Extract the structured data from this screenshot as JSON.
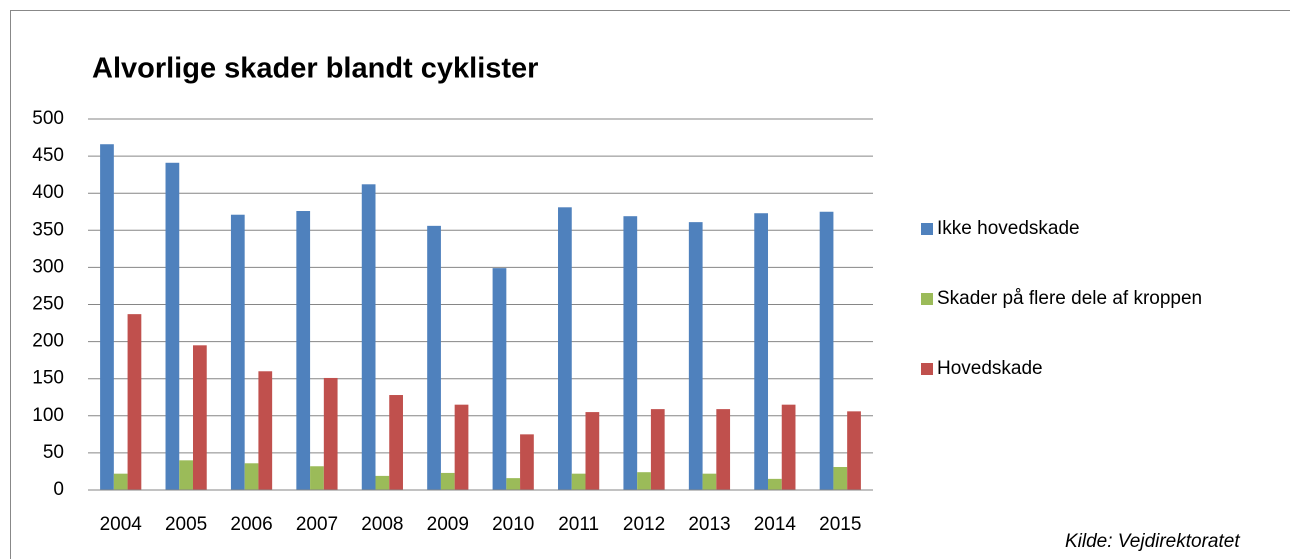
{
  "chart_data": {
    "type": "bar",
    "title": "Alvorlige skader blandt cyklister",
    "categories": [
      "2004",
      "2005",
      "2006",
      "2007",
      "2008",
      "2009",
      "2010",
      "2011",
      "2012",
      "2013",
      "2014",
      "2015"
    ],
    "series": [
      {
        "name": "Ikke hovedskade",
        "color": "#4f81bd",
        "values": [
          466,
          441,
          371,
          376,
          412,
          356,
          299,
          381,
          369,
          361,
          373,
          375
        ]
      },
      {
        "name": "Skader på flere dele af kroppen",
        "color": "#9bbb59",
        "values": [
          22,
          40,
          36,
          32,
          19,
          23,
          16,
          22,
          24,
          22,
          15,
          31
        ]
      },
      {
        "name": "Hovedskade",
        "color": "#c0504d",
        "values": [
          237,
          195,
          160,
          151,
          128,
          115,
          75,
          105,
          109,
          109,
          115,
          106
        ]
      }
    ],
    "ylim": [
      0,
      500
    ],
    "yticks": [
      0,
      50,
      100,
      150,
      200,
      250,
      300,
      350,
      400,
      450,
      500
    ],
    "grid": true,
    "legend": "right",
    "source": "Kilde: Vejdirektoratet"
  }
}
